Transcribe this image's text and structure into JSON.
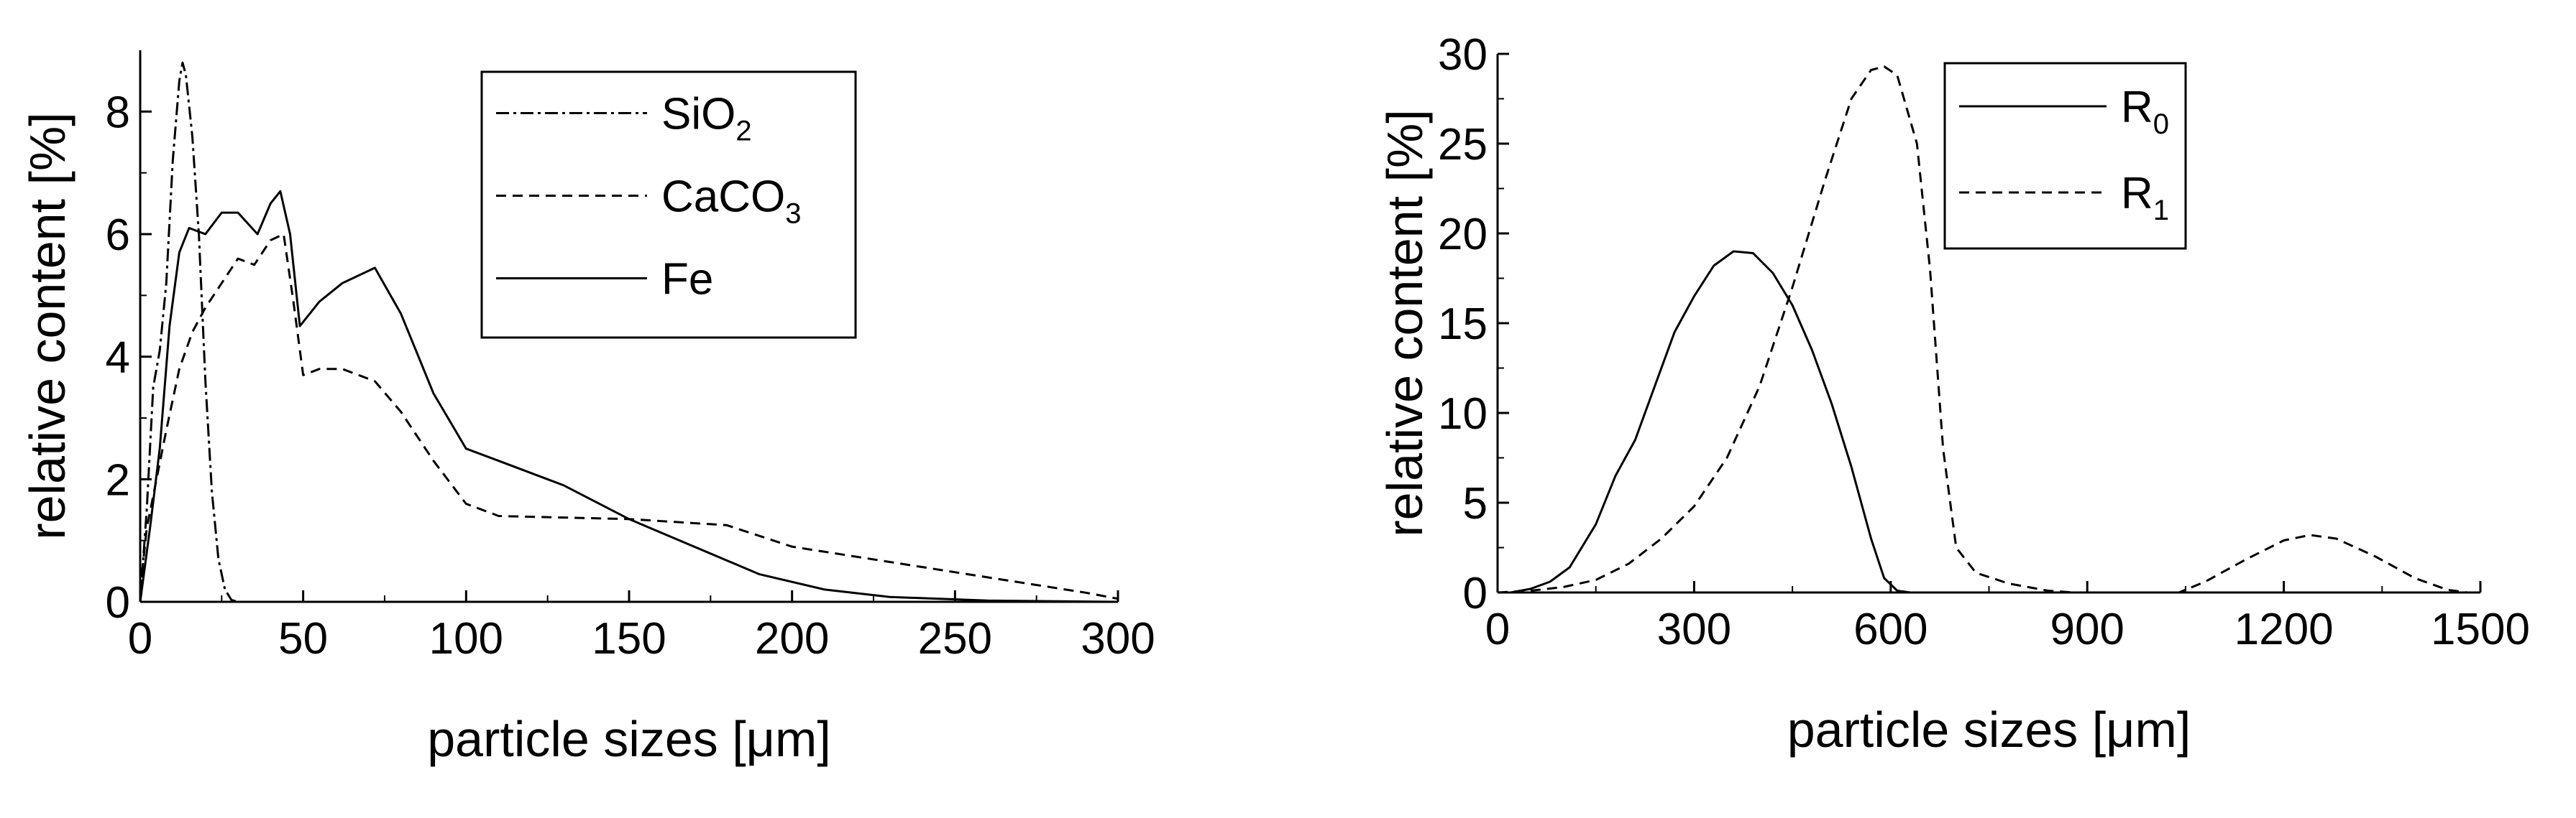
{
  "chart_data": [
    {
      "type": "line",
      "xlabel": "particle sizes [μm]",
      "ylabel": "relative content [%]",
      "xlim": [
        0,
        300
      ],
      "ylim": [
        0,
        9
      ],
      "x_ticks": [
        0,
        50,
        100,
        150,
        200,
        250,
        300
      ],
      "y_ticks": [
        0,
        2,
        4,
        6,
        8
      ],
      "legend": "top-right",
      "series": [
        {
          "name_main": "SiO",
          "name_sub": "2",
          "dash": "dashdot",
          "points": [
            [
              0,
              0
            ],
            [
              2,
              1.5
            ],
            [
              4,
              3.5
            ],
            [
              6,
              4.1
            ],
            [
              8,
              5.2
            ],
            [
              10,
              7.2
            ],
            [
              12,
              8.5
            ],
            [
              13,
              8.8
            ],
            [
              14,
              8.6
            ],
            [
              16,
              7.6
            ],
            [
              18,
              6.0
            ],
            [
              20,
              3.6
            ],
            [
              22,
              1.8
            ],
            [
              24,
              0.7
            ],
            [
              26,
              0.2
            ],
            [
              28,
              0.03
            ],
            [
              30,
              0
            ]
          ]
        },
        {
          "name_main": "CaCO",
          "name_sub": "3",
          "dash": "dashed",
          "points": [
            [
              0,
              0.2
            ],
            [
              2,
              1.2
            ],
            [
              5,
              2.0
            ],
            [
              8,
              2.8
            ],
            [
              12,
              3.8
            ],
            [
              16,
              4.4
            ],
            [
              20,
              4.8
            ],
            [
              25,
              5.2
            ],
            [
              30,
              5.6
            ],
            [
              35,
              5.5
            ],
            [
              40,
              5.9
            ],
            [
              44,
              6.0
            ],
            [
              47,
              4.9
            ],
            [
              50,
              3.7
            ],
            [
              55,
              3.8
            ],
            [
              62,
              3.8
            ],
            [
              72,
              3.6
            ],
            [
              80,
              3.1
            ],
            [
              90,
              2.3
            ],
            [
              100,
              1.6
            ],
            [
              110,
              1.4
            ],
            [
              150,
              1.35
            ],
            [
              180,
              1.25
            ],
            [
              200,
              0.9
            ],
            [
              230,
              0.65
            ],
            [
              260,
              0.4
            ],
            [
              290,
              0.15
            ],
            [
              300,
              0.05
            ]
          ]
        },
        {
          "name_main": "Fe",
          "name_sub": "",
          "dash": "solid",
          "points": [
            [
              0,
              0
            ],
            [
              3,
              1.2
            ],
            [
              6,
              2.5
            ],
            [
              9,
              4.5
            ],
            [
              12,
              5.7
            ],
            [
              15,
              6.1
            ],
            [
              20,
              6.0
            ],
            [
              25,
              6.35
            ],
            [
              30,
              6.35
            ],
            [
              36,
              6.0
            ],
            [
              40,
              6.5
            ],
            [
              43,
              6.7
            ],
            [
              46,
              6.0
            ],
            [
              49,
              4.5
            ],
            [
              55,
              4.9
            ],
            [
              62,
              5.2
            ],
            [
              72,
              5.45
            ],
            [
              80,
              4.7
            ],
            [
              90,
              3.4
            ],
            [
              100,
              2.5
            ],
            [
              110,
              2.3
            ],
            [
              130,
              1.9
            ],
            [
              150,
              1.35
            ],
            [
              170,
              0.9
            ],
            [
              190,
              0.45
            ],
            [
              210,
              0.2
            ],
            [
              230,
              0.08
            ],
            [
              260,
              0.02
            ],
            [
              300,
              0
            ]
          ]
        }
      ]
    },
    {
      "type": "line",
      "xlabel": "particle sizes [μm]",
      "ylabel": "relative content [%]",
      "xlim": [
        0,
        1500
      ],
      "ylim": [
        0,
        30
      ],
      "x_ticks": [
        0,
        300,
        600,
        900,
        1200,
        1500
      ],
      "y_ticks": [
        0,
        5,
        10,
        15,
        20,
        25,
        30
      ],
      "legend": "top-right",
      "series": [
        {
          "name_main": "R",
          "name_sub": "0",
          "dash": "solid",
          "points": [
            [
              20,
              0
            ],
            [
              50,
              0.2
            ],
            [
              80,
              0.6
            ],
            [
              110,
              1.4
            ],
            [
              150,
              3.8
            ],
            [
              180,
              6.5
            ],
            [
              210,
              8.5
            ],
            [
              240,
              11.5
            ],
            [
              270,
              14.5
            ],
            [
              300,
              16.5
            ],
            [
              330,
              18.2
            ],
            [
              360,
              19.0
            ],
            [
              390,
              18.9
            ],
            [
              420,
              17.8
            ],
            [
              450,
              16.0
            ],
            [
              480,
              13.5
            ],
            [
              510,
              10.5
            ],
            [
              540,
              7.0
            ],
            [
              570,
              3.0
            ],
            [
              590,
              0.8
            ],
            [
              610,
              0.1
            ],
            [
              630,
              0
            ]
          ]
        },
        {
          "name_main": "R",
          "name_sub": "1",
          "dash": "dashed",
          "points": [
            [
              0,
              0
            ],
            [
              50,
              0.1
            ],
            [
              100,
              0.3
            ],
            [
              150,
              0.7
            ],
            [
              200,
              1.6
            ],
            [
              250,
              3.0
            ],
            [
              300,
              4.8
            ],
            [
              350,
              7.5
            ],
            [
              400,
              11.5
            ],
            [
              450,
              17.0
            ],
            [
              500,
              23.0
            ],
            [
              540,
              27.5
            ],
            [
              570,
              29.1
            ],
            [
              590,
              29.3
            ],
            [
              610,
              28.8
            ],
            [
              640,
              25.0
            ],
            [
              660,
              18.0
            ],
            [
              680,
              8.0
            ],
            [
              700,
              2.5
            ],
            [
              730,
              1.1
            ],
            [
              780,
              0.5
            ],
            [
              840,
              0.1
            ],
            [
              880,
              0
            ],
            [
              1040,
              0
            ],
            [
              1080,
              0.6
            ],
            [
              1140,
              1.8
            ],
            [
              1200,
              2.9
            ],
            [
              1240,
              3.2
            ],
            [
              1280,
              3.0
            ],
            [
              1340,
              2.0
            ],
            [
              1400,
              0.8
            ],
            [
              1450,
              0.15
            ],
            [
              1480,
              0
            ]
          ]
        }
      ]
    }
  ]
}
